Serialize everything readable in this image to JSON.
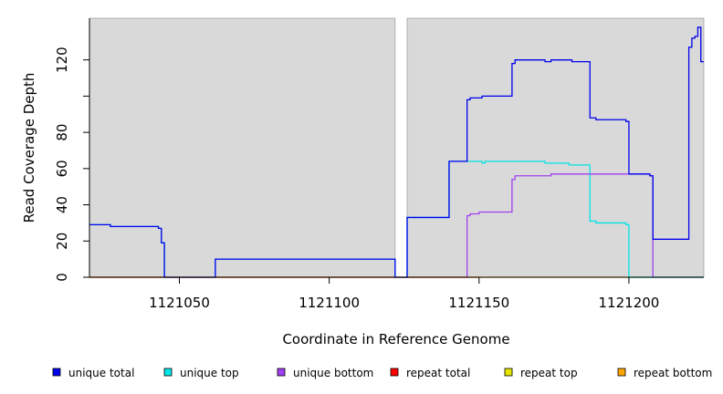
{
  "chart_data": {
    "type": "line",
    "title": "",
    "xlabel": "Coordinate in Reference Genome",
    "ylabel": "Read Coverage Depth",
    "xlim": [
      1121020,
      1121225
    ],
    "ylim": [
      0,
      143
    ],
    "x_ticks": [
      1121050,
      1121100,
      1121150,
      1121200
    ],
    "x_tick_labels": [
      "1121050",
      "1121100",
      "1121150",
      "1121200"
    ],
    "y_ticks": [
      0,
      20,
      40,
      60,
      80,
      100,
      120
    ],
    "y_tick_labels": [
      "0",
      "20",
      "40",
      "60",
      "80",
      "",
      "120"
    ],
    "grid": false,
    "background_regions": [
      {
        "x": [
          1121020,
          1121122
        ],
        "color": "#d9d9d9"
      },
      {
        "x": [
          1121126,
          1121225
        ],
        "color": "#d9d9d9"
      }
    ],
    "legend_position": "bottom",
    "series": [
      {
        "name": "unique top",
        "color": "#00e5e5",
        "points": [
          [
            1121020,
            29
          ],
          [
            1121027,
            29
          ],
          [
            1121027,
            28
          ],
          [
            1121043,
            28
          ],
          [
            1121043,
            27
          ],
          [
            1121044,
            27
          ],
          [
            1121044,
            19
          ],
          [
            1121045,
            19
          ],
          [
            1121045,
            0
          ],
          [
            1121062,
            0
          ],
          [
            1121062,
            10
          ],
          [
            1121122,
            10
          ],
          [
            1121122,
            0
          ],
          [
            1121126,
            0
          ],
          [
            1121126,
            33
          ],
          [
            1121140,
            33
          ],
          [
            1121140,
            64
          ],
          [
            1121151,
            64
          ],
          [
            1121151,
            63
          ],
          [
            1121152,
            63
          ],
          [
            1121152,
            64
          ],
          [
            1121172,
            64
          ],
          [
            1121172,
            63
          ],
          [
            1121180,
            63
          ],
          [
            1121180,
            62
          ],
          [
            1121187,
            62
          ],
          [
            1121187,
            31
          ],
          [
            1121189,
            31
          ],
          [
            1121189,
            30
          ],
          [
            1121199,
            30
          ],
          [
            1121199,
            29
          ],
          [
            1121200,
            29
          ],
          [
            1121200,
            0
          ],
          [
            1121225,
            0
          ]
        ]
      },
      {
        "name": "unique bottom",
        "color": "#a040f0",
        "points": [
          [
            1121020,
            0
          ],
          [
            1121146,
            0
          ],
          [
            1121146,
            34
          ],
          [
            1121147,
            34
          ],
          [
            1121147,
            35
          ],
          [
            1121150,
            35
          ],
          [
            1121150,
            36
          ],
          [
            1121161,
            36
          ],
          [
            1121161,
            54
          ],
          [
            1121162,
            54
          ],
          [
            1121162,
            56
          ],
          [
            1121174,
            56
          ],
          [
            1121174,
            57
          ],
          [
            1121207,
            57
          ],
          [
            1121207,
            56
          ],
          [
            1121208,
            56
          ],
          [
            1121208,
            0
          ],
          [
            1121225,
            0
          ]
        ]
      },
      {
        "name": "repeat total",
        "color": "#ff0000",
        "points": [
          [
            1121020,
            0
          ],
          [
            1121150,
            0
          ]
        ]
      },
      {
        "name": "repeat top",
        "color": "#e5e500",
        "points": [
          [
            1121020,
            0
          ],
          [
            1121150,
            0
          ]
        ]
      },
      {
        "name": "repeat bottom",
        "color": "#ffa500",
        "points": [
          [
            1121150,
            0
          ],
          [
            1121200,
            0
          ]
        ]
      },
      {
        "name": "",
        "color": "#2ec760",
        "points": [
          [
            1121200,
            0
          ],
          [
            1121225,
            0
          ]
        ]
      },
      {
        "name": "unique total",
        "color": "#0000ee",
        "points": [
          [
            1121020,
            29
          ],
          [
            1121027,
            29
          ],
          [
            1121027,
            28
          ],
          [
            1121043,
            28
          ],
          [
            1121043,
            27
          ],
          [
            1121044,
            27
          ],
          [
            1121044,
            19
          ],
          [
            1121045,
            19
          ],
          [
            1121045,
            0
          ],
          [
            1121062,
            0
          ],
          [
            1121062,
            10
          ],
          [
            1121122,
            10
          ],
          [
            1121122,
            0
          ],
          [
            1121126,
            0
          ],
          [
            1121126,
            33
          ],
          [
            1121140,
            33
          ],
          [
            1121140,
            64
          ],
          [
            1121146,
            64
          ],
          [
            1121146,
            98
          ],
          [
            1121147,
            98
          ],
          [
            1121147,
            99
          ],
          [
            1121151,
            99
          ],
          [
            1121151,
            100
          ],
          [
            1121161,
            100
          ],
          [
            1121161,
            118
          ],
          [
            1121162,
            118
          ],
          [
            1121162,
            120
          ],
          [
            1121172,
            120
          ],
          [
            1121172,
            119
          ],
          [
            1121174,
            119
          ],
          [
            1121174,
            120
          ],
          [
            1121181,
            120
          ],
          [
            1121181,
            119
          ],
          [
            1121187,
            119
          ],
          [
            1121187,
            88
          ],
          [
            1121189,
            88
          ],
          [
            1121189,
            87
          ],
          [
            1121199,
            87
          ],
          [
            1121199,
            86
          ],
          [
            1121200,
            86
          ],
          [
            1121200,
            57
          ],
          [
            1121207,
            57
          ],
          [
            1121207,
            56
          ],
          [
            1121208,
            56
          ],
          [
            1121208,
            21
          ],
          [
            1121220,
            21
          ],
          [
            1121220,
            127
          ],
          [
            1121221,
            127
          ],
          [
            1121221,
            132
          ],
          [
            1121222,
            132
          ],
          [
            1121222,
            133
          ],
          [
            1121223,
            133
          ],
          [
            1121223,
            138
          ],
          [
            1121224,
            138
          ],
          [
            1121224,
            119
          ],
          [
            1121225,
            119
          ]
        ]
      }
    ],
    "legend": [
      {
        "label": "unique total",
        "color": "#0000ee"
      },
      {
        "label": "unique top",
        "color": "#00e5e5"
      },
      {
        "label": "unique bottom",
        "color": "#a040f0"
      },
      {
        "label": "repeat total",
        "color": "#ff0000"
      },
      {
        "label": "repeat top",
        "color": "#e5e500"
      },
      {
        "label": "repeat bottom",
        "color": "#ffa500"
      }
    ]
  }
}
